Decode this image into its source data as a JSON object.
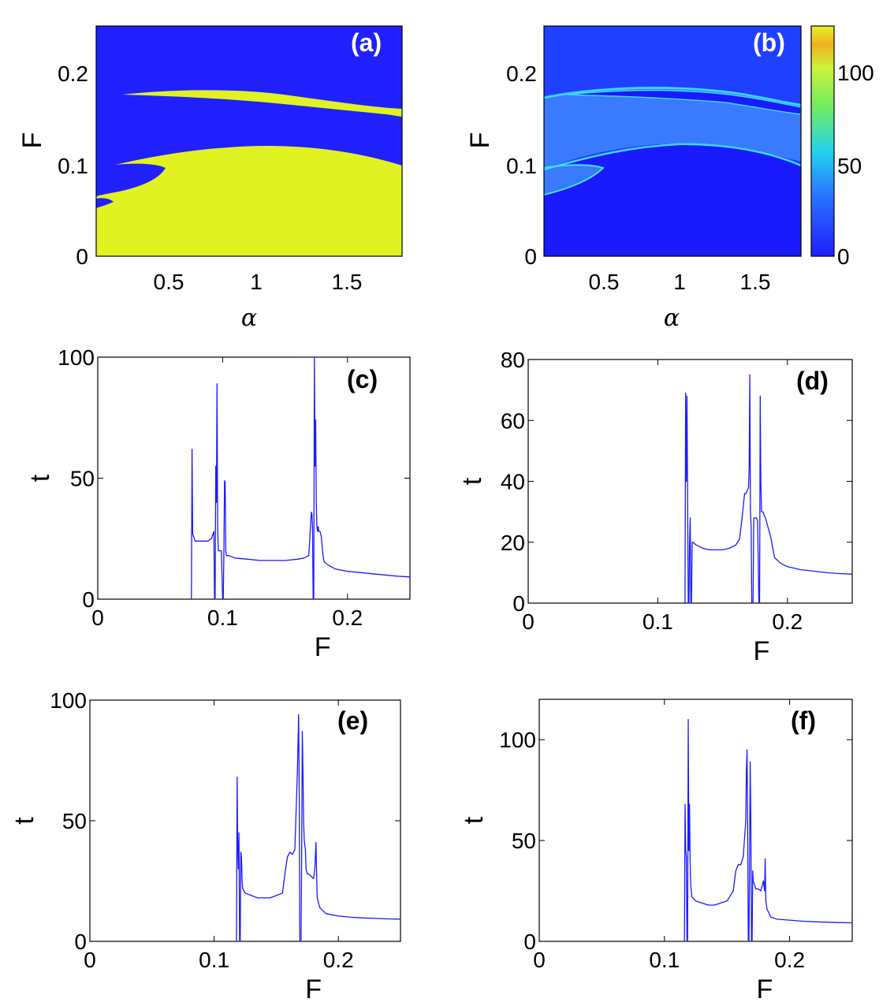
{
  "colors": {
    "blue": "#2020ff",
    "yellow": "#e0f222",
    "line": "#1a1aff"
  },
  "chart_data": [
    {
      "id": "a",
      "type": "heatmap",
      "panel_label": "(a)",
      "xlabel": "α",
      "ylabel": "F",
      "xlim": [
        0.1,
        1.8
      ],
      "ylim": [
        0,
        0.25
      ],
      "xticks": [
        "0.5",
        "1",
        "1.5"
      ],
      "yticks": [
        "0",
        "0.1",
        "0.2"
      ]
    },
    {
      "id": "b",
      "type": "heatmap",
      "panel_label": "(b)",
      "xlabel": "α",
      "ylabel": "F",
      "xlim": [
        0.1,
        1.8
      ],
      "ylim": [
        0,
        0.25
      ],
      "xticks": [
        "0.5",
        "1",
        "1.5"
      ],
      "yticks": [
        "0",
        "0.1",
        "0.2"
      ],
      "colorbar": {
        "min": 0,
        "max": 125,
        "ticks": [
          "0",
          "50",
          "100"
        ]
      }
    },
    {
      "id": "c",
      "type": "line",
      "panel_label": "(c)",
      "xlabel": "F",
      "ylabel": "t",
      "xlim": [
        0,
        0.25
      ],
      "ylim": [
        0,
        100
      ],
      "xticks": [
        "0",
        "0.1",
        "0.2"
      ],
      "yticks": [
        "0",
        "50",
        "100"
      ],
      "x": [
        0.075,
        0.0755,
        0.076,
        0.078,
        0.082,
        0.088,
        0.091,
        0.093,
        0.0935,
        0.094,
        0.0945,
        0.095,
        0.0955,
        0.096,
        0.0965,
        0.097,
        0.0975,
        0.098,
        0.099,
        0.1,
        0.1005,
        0.101,
        0.1015,
        0.102,
        0.1025,
        0.103,
        0.105,
        0.11,
        0.12,
        0.13,
        0.14,
        0.15,
        0.16,
        0.165,
        0.169,
        0.171,
        0.1715,
        0.172,
        0.1725,
        0.173,
        0.1735,
        0.174,
        0.1745,
        0.175,
        0.1755,
        0.176,
        0.1765,
        0.177,
        0.178,
        0.179,
        0.18,
        0.181,
        0.182,
        0.185,
        0.19,
        0.2,
        0.21,
        0.22,
        0.23,
        0.24,
        0.25
      ],
      "y": [
        0,
        62,
        27,
        24,
        24,
        24,
        25,
        28,
        0,
        0,
        55,
        40,
        89,
        30,
        20,
        20,
        20,
        20,
        20,
        0,
        0,
        20,
        49,
        48,
        20,
        18,
        18,
        17,
        16.5,
        16,
        16,
        16,
        16.5,
        17,
        18,
        36,
        35,
        30,
        0,
        0,
        100,
        55,
        74,
        40,
        30,
        28,
        30,
        28,
        28,
        26,
        20,
        16,
        15,
        14,
        12.5,
        11.5,
        11,
        10.5,
        10,
        9.5,
        9.2
      ]
    },
    {
      "id": "d",
      "type": "line",
      "panel_label": "(d)",
      "xlabel": "F",
      "ylabel": "t",
      "xlim": [
        0,
        0.25
      ],
      "ylim": [
        0,
        80
      ],
      "xticks": [
        "0",
        "0.1",
        "0.2"
      ],
      "yticks": [
        "0",
        "20",
        "40",
        "60",
        "80"
      ],
      "x": [
        0.121,
        0.1215,
        0.122,
        0.1225,
        0.123,
        0.1235,
        0.124,
        0.1245,
        0.125,
        0.1255,
        0.126,
        0.1265,
        0.127,
        0.13,
        0.135,
        0.14,
        0.145,
        0.15,
        0.155,
        0.16,
        0.163,
        0.165,
        0.167,
        0.168,
        0.169,
        0.17,
        0.1705,
        0.171,
        0.1715,
        0.172,
        0.1725,
        0.173,
        0.1735,
        0.174,
        0.175,
        0.176,
        0.177,
        0.178,
        0.1785,
        0.179,
        0.1795,
        0.18,
        0.181,
        0.182,
        0.183,
        0.185,
        0.187,
        0.19,
        0.195,
        0.2,
        0.21,
        0.22,
        0.23,
        0.24,
        0.25
      ],
      "y": [
        0,
        69,
        40,
        68,
        35,
        0,
        0,
        20,
        28,
        0,
        0,
        20,
        20,
        19,
        18,
        17.5,
        17.5,
        17.5,
        18,
        19,
        21,
        28,
        36,
        36,
        37,
        38,
        45,
        75,
        30,
        25,
        0,
        0,
        0,
        28,
        28,
        28,
        27,
        0,
        0,
        68,
        40,
        30,
        30,
        29,
        28,
        25,
        22,
        15,
        13,
        12,
        11,
        10.5,
        10,
        9.7,
        9.5
      ]
    },
    {
      "id": "e",
      "type": "line",
      "panel_label": "(e)",
      "xlabel": "F",
      "ylabel": "t",
      "xlim": [
        0,
        0.25
      ],
      "ylim": [
        0,
        100
      ],
      "xticks": [
        "0",
        "0.1",
        "0.2"
      ],
      "yticks": [
        "0",
        "50",
        "100"
      ],
      "x": [
        0.118,
        0.1185,
        0.119,
        0.1195,
        0.12,
        0.1205,
        0.121,
        0.1215,
        0.122,
        0.1225,
        0.123,
        0.125,
        0.13,
        0.135,
        0.14,
        0.145,
        0.15,
        0.155,
        0.157,
        0.159,
        0.161,
        0.163,
        0.165,
        0.167,
        0.168,
        0.1685,
        0.169,
        0.1695,
        0.17,
        0.1705,
        0.171,
        0.1715,
        0.172,
        0.1725,
        0.173,
        0.1735,
        0.174,
        0.175,
        0.176,
        0.178,
        0.18,
        0.181,
        0.182,
        0.1825,
        0.183,
        0.185,
        0.19,
        0.2,
        0.21,
        0.22,
        0.23,
        0.24,
        0.25
      ],
      "y": [
        0,
        68,
        40,
        30,
        45,
        0,
        0,
        37,
        35,
        25,
        22,
        20,
        19,
        18,
        18,
        18,
        19,
        20,
        28,
        35,
        37,
        36,
        38,
        70,
        94,
        60,
        0,
        0,
        0,
        40,
        87,
        70,
        50,
        42,
        40,
        38,
        30,
        28,
        28,
        27,
        26,
        30,
        41,
        28,
        18,
        14,
        11.5,
        10.5,
        10,
        9.7,
        9.5,
        9.3,
        9.2
      ]
    },
    {
      "id": "f",
      "type": "line",
      "panel_label": "(f)",
      "xlabel": "F",
      "ylabel": "t",
      "xlim": [
        0,
        0.25
      ],
      "ylim": [
        0,
        120
      ],
      "xticks": [
        "0",
        "0.1",
        "0.2"
      ],
      "yticks": [
        "0",
        "50",
        "100"
      ],
      "x": [
        0.116,
        0.1165,
        0.117,
        0.1175,
        0.118,
        0.1185,
        0.119,
        0.1195,
        0.12,
        0.1205,
        0.121,
        0.1215,
        0.122,
        0.125,
        0.13,
        0.135,
        0.14,
        0.145,
        0.15,
        0.155,
        0.157,
        0.159,
        0.161,
        0.163,
        0.165,
        0.1655,
        0.166,
        0.1665,
        0.167,
        0.1675,
        0.168,
        0.1685,
        0.169,
        0.1695,
        0.17,
        0.1705,
        0.171,
        0.172,
        0.173,
        0.175,
        0.177,
        0.179,
        0.18,
        0.1805,
        0.181,
        0.182,
        0.185,
        0.19,
        0.2,
        0.21,
        0.22,
        0.23,
        0.24,
        0.25
      ],
      "y": [
        0,
        68,
        45,
        42,
        0,
        0,
        110,
        45,
        68,
        40,
        28,
        25,
        22,
        20,
        19,
        18,
        18,
        19,
        20,
        25,
        35,
        38,
        38,
        42,
        60,
        85,
        95,
        55,
        0,
        0,
        40,
        89,
        60,
        0,
        0,
        35,
        30,
        28,
        26,
        26,
        25,
        30,
        25,
        41,
        20,
        16,
        12,
        11,
        10.5,
        10,
        9.7,
        9.5,
        9.3,
        9.2
      ]
    }
  ]
}
